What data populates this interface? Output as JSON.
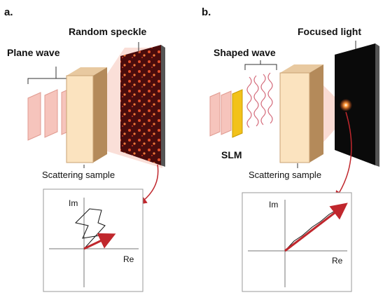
{
  "panels": [
    {
      "label": "a.",
      "wave_label": "Plane wave",
      "output_label": "Random speckle",
      "sample_label": "Scattering sample",
      "inset": {
        "y_axis": "Im",
        "x_axis": "Re"
      }
    },
    {
      "label": "b.",
      "wave_label": "Shaped wave",
      "output_label": "Focused light",
      "modulator_label": "SLM",
      "sample_label": "Scattering sample",
      "inset": {
        "y_axis": "Im",
        "x_axis": "Re"
      }
    }
  ]
}
